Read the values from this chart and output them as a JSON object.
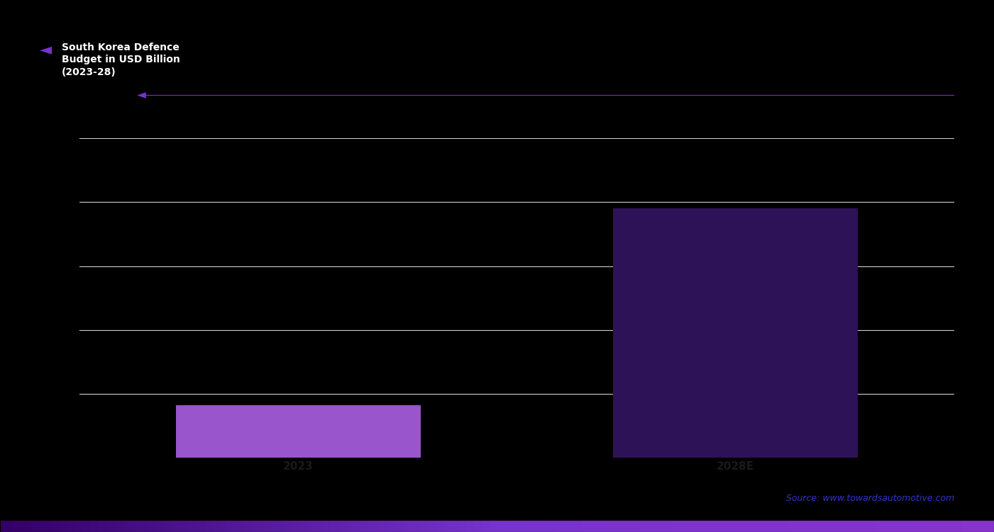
{
  "title_line1": "South Korea Defence",
  "title_line2": "Budget in USD Billion",
  "title_line3": "(2023-28)",
  "categories": [
    "2023",
    "2028E"
  ],
  "values": [
    16.5,
    78.0
  ],
  "bar_colors": [
    "#9955cc",
    "#2d1257"
  ],
  "ylim": [
    0,
    100
  ],
  "ytick_count": 6,
  "background_color": "#000000",
  "plot_background": "#000000",
  "grid_color": "#cccccc",
  "grid_linewidth": 0.8,
  "tick_label_color": "#111111",
  "source_text": "Source: www.towardsautomotive.com",
  "source_color": "#3333cc",
  "arrow_color": "#7733cc",
  "bar_width": 0.28,
  "bottom_bar_color1": "#330066",
  "bottom_bar_color2": "#8833cc"
}
